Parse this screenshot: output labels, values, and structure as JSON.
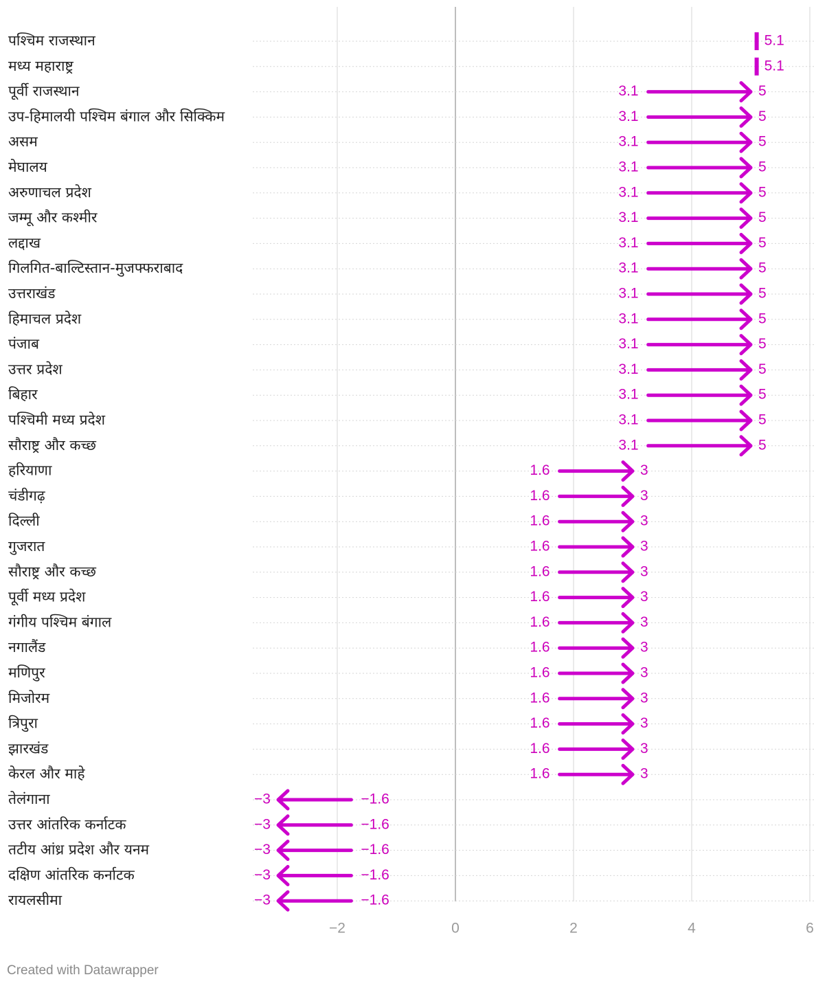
{
  "chart_data": {
    "type": "arrow",
    "title": "",
    "xlabel": "",
    "ylabel": "",
    "xlim": [
      -3.4,
      6.1
    ],
    "x_ticks": [
      -2,
      0,
      2,
      4,
      6
    ],
    "x_tick_labels": [
      "−2",
      "0",
      "2",
      "4",
      "6"
    ],
    "color": "#cc00cc",
    "rows": [
      {
        "label": "पश्चिम राजस्थान",
        "start": 5.1,
        "end": 5.1,
        "start_label": "",
        "end_label": "5.1"
      },
      {
        "label": "मध्य महाराष्ट्र",
        "start": 5.1,
        "end": 5.1,
        "start_label": "",
        "end_label": "5.1"
      },
      {
        "label": "पूर्वी राजस्थान",
        "start": 3.1,
        "end": 5,
        "start_label": "3.1",
        "end_label": "5"
      },
      {
        "label": "उप-हिमालयी पश्चिम बंगाल और सिक्किम",
        "start": 3.1,
        "end": 5,
        "start_label": "3.1",
        "end_label": "5"
      },
      {
        "label": "असम",
        "start": 3.1,
        "end": 5,
        "start_label": "3.1",
        "end_label": "5"
      },
      {
        "label": "मेघालय",
        "start": 3.1,
        "end": 5,
        "start_label": "3.1",
        "end_label": "5"
      },
      {
        "label": "अरुणाचल प्रदेश",
        "start": 3.1,
        "end": 5,
        "start_label": "3.1",
        "end_label": "5"
      },
      {
        "label": "जम्मू और कश्मीर",
        "start": 3.1,
        "end": 5,
        "start_label": "3.1",
        "end_label": "5"
      },
      {
        "label": "लद्दाख",
        "start": 3.1,
        "end": 5,
        "start_label": "3.1",
        "end_label": "5"
      },
      {
        "label": "गिलगित-बाल्टिस्तान-मुजफ्फराबाद",
        "start": 3.1,
        "end": 5,
        "start_label": "3.1",
        "end_label": "5"
      },
      {
        "label": "उत्तराखंड",
        "start": 3.1,
        "end": 5,
        "start_label": "3.1",
        "end_label": "5"
      },
      {
        "label": "हिमाचल प्रदेश",
        "start": 3.1,
        "end": 5,
        "start_label": "3.1",
        "end_label": "5"
      },
      {
        "label": "पंजाब",
        "start": 3.1,
        "end": 5,
        "start_label": "3.1",
        "end_label": "5"
      },
      {
        "label": "उत्तर प्रदेश",
        "start": 3.1,
        "end": 5,
        "start_label": "3.1",
        "end_label": "5"
      },
      {
        "label": "बिहार",
        "start": 3.1,
        "end": 5,
        "start_label": "3.1",
        "end_label": "5"
      },
      {
        "label": "पश्चिमी मध्य प्रदेश",
        "start": 3.1,
        "end": 5,
        "start_label": "3.1",
        "end_label": "5"
      },
      {
        "label": "सौराष्ट्र और कच्छ",
        "start": 3.1,
        "end": 5,
        "start_label": "3.1",
        "end_label": "5"
      },
      {
        "label": "हरियाणा",
        "start": 1.6,
        "end": 3,
        "start_label": "1.6",
        "end_label": "3"
      },
      {
        "label": "चंडीगढ़",
        "start": 1.6,
        "end": 3,
        "start_label": "1.6",
        "end_label": "3"
      },
      {
        "label": "दिल्ली",
        "start": 1.6,
        "end": 3,
        "start_label": "1.6",
        "end_label": "3"
      },
      {
        "label": "गुजरात",
        "start": 1.6,
        "end": 3,
        "start_label": "1.6",
        "end_label": "3"
      },
      {
        "label": "सौराष्ट्र और कच्छ",
        "start": 1.6,
        "end": 3,
        "start_label": "1.6",
        "end_label": "3"
      },
      {
        "label": "पूर्वी मध्य प्रदेश",
        "start": 1.6,
        "end": 3,
        "start_label": "1.6",
        "end_label": "3"
      },
      {
        "label": "गंगीय पश्चिम बंगाल",
        "start": 1.6,
        "end": 3,
        "start_label": "1.6",
        "end_label": "3"
      },
      {
        "label": "नगालैंड",
        "start": 1.6,
        "end": 3,
        "start_label": "1.6",
        "end_label": "3"
      },
      {
        "label": "मणिपुर",
        "start": 1.6,
        "end": 3,
        "start_label": "1.6",
        "end_label": "3"
      },
      {
        "label": "मिजोरम",
        "start": 1.6,
        "end": 3,
        "start_label": "1.6",
        "end_label": "3"
      },
      {
        "label": "त्रिपुरा",
        "start": 1.6,
        "end": 3,
        "start_label": "1.6",
        "end_label": "3"
      },
      {
        "label": "झारखंड",
        "start": 1.6,
        "end": 3,
        "start_label": "1.6",
        "end_label": "3"
      },
      {
        "label": "केरल और माहे",
        "start": 1.6,
        "end": 3,
        "start_label": "1.6",
        "end_label": "3"
      },
      {
        "label": "तेलंगाना",
        "start": -1.6,
        "end": -3,
        "start_label": "−1.6",
        "end_label": "−3"
      },
      {
        "label": "उत्तर आंतरिक कर्नाटक",
        "start": -1.6,
        "end": -3,
        "start_label": "−1.6",
        "end_label": "−3"
      },
      {
        "label": "तटीय आंध्र प्रदेश और यनम",
        "start": -1.6,
        "end": -3,
        "start_label": "−1.6",
        "end_label": "−3"
      },
      {
        "label": "दक्षिण आंतरिक कर्नाटक",
        "start": -1.6,
        "end": -3,
        "start_label": "−1.6",
        "end_label": "−3"
      },
      {
        "label": "रायलसीमा",
        "start": -1.6,
        "end": -3,
        "start_label": "−1.6",
        "end_label": "−3"
      }
    ]
  },
  "footer": {
    "credit": "Created with Datawrapper"
  }
}
